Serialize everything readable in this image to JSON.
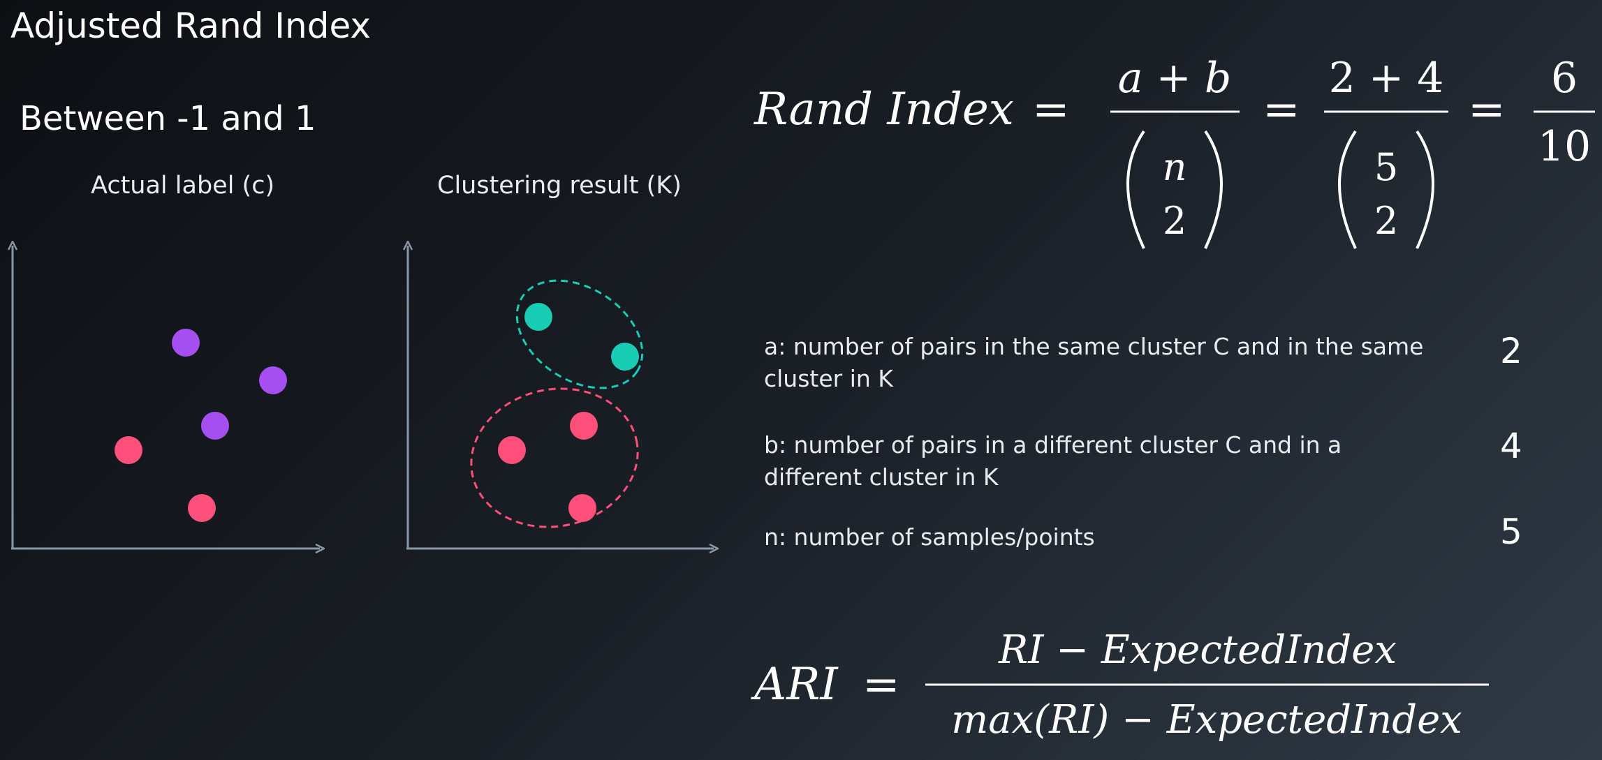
{
  "title": "Adjusted Rand Index",
  "subtitle": "Between -1 and 1",
  "plots": {
    "actual_title": "Actual label (c)",
    "cluster_title": "Clustering result (K)"
  },
  "colors": {
    "purple": "#a64ff0",
    "pink": "#ff4f7b",
    "teal": "#19cdb5",
    "axis": "#8b97a6"
  },
  "formula_ri": {
    "lhs": "Rand Index",
    "eq": "=",
    "num1": "a + b",
    "den1_top": "n",
    "den1_bottom": "2",
    "num2": "2 + 4",
    "den2_top": "5",
    "den2_bottom": "2",
    "num3": "6",
    "den3": "10"
  },
  "definitions": [
    {
      "text": "a: number of pairs in the same cluster C and in the same cluster in K",
      "value": "2"
    },
    {
      "text": "b: number of pairs in a different cluster C and in a different cluster in K",
      "value": "4"
    },
    {
      "text": "n: number of samples/points",
      "value": "5"
    }
  ],
  "formula_ari": {
    "lhs": "ARI",
    "eq": "=",
    "numerator": "RI − ExpectedIndex",
    "denominator": "max(RI) − ExpectedIndex"
  }
}
